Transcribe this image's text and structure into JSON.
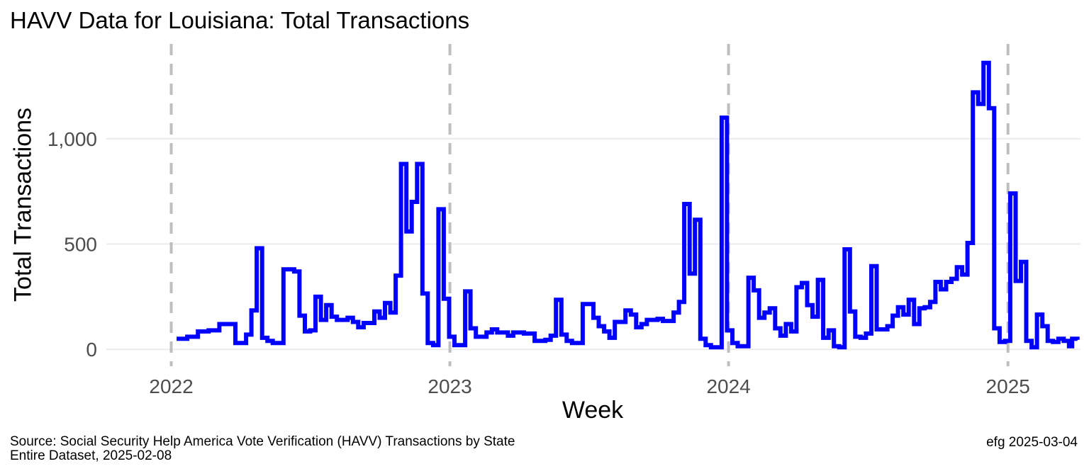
{
  "title": "HAVV Data for Louisiana:  Total Transactions",
  "caption": {
    "line1": "Source:  Social Security Help America Vote Verification (HAVV) Transactions by State",
    "line2": "Entire Dataset, 2025-02-08",
    "right": "efg 2025-03-04"
  },
  "colors": {
    "line": "#0000ff",
    "grid": "#ebebeb",
    "year_line": "#bebebe",
    "tick_text": "#4d4d4d"
  },
  "chart_data": {
    "type": "line",
    "step": true,
    "title": "HAVV Data for Louisiana:  Total Transactions",
    "xlabel": "Week",
    "ylabel": "Total Transactions",
    "x_ticks": [
      {
        "value": "2022-01-01",
        "label": "2022"
      },
      {
        "value": "2023-01-01",
        "label": "2023"
      },
      {
        "value": "2024-01-01",
        "label": "2024"
      },
      {
        "value": "2025-01-01",
        "label": "2025"
      }
    ],
    "y_ticks": [
      {
        "value": 0,
        "label": "0"
      },
      {
        "value": 500,
        "label": "500"
      },
      {
        "value": 1000,
        "label": "1,000"
      }
    ],
    "xlim": [
      "2021-10-08",
      "2025-04-06"
    ],
    "ylim": [
      -80,
      1450
    ],
    "year_lines": [
      "2022-01-01",
      "2023-01-01",
      "2024-01-01",
      "2025-01-01"
    ],
    "grid": true,
    "series": [
      {
        "values": [
          [
            "2022-01-08",
            50
          ],
          [
            "2022-01-22",
            60
          ],
          [
            "2022-02-05",
            85
          ],
          [
            "2022-02-19",
            90
          ],
          [
            "2022-03-05",
            120
          ],
          [
            "2022-03-26",
            30
          ],
          [
            "2022-04-09",
            70
          ],
          [
            "2022-04-16",
            185
          ],
          [
            "2022-04-23",
            480
          ],
          [
            "2022-04-30",
            55
          ],
          [
            "2022-05-07",
            40
          ],
          [
            "2022-05-14",
            30
          ],
          [
            "2022-05-28",
            380
          ],
          [
            "2022-06-11",
            370
          ],
          [
            "2022-06-18",
            160
          ],
          [
            "2022-06-25",
            85
          ],
          [
            "2022-07-02",
            90
          ],
          [
            "2022-07-09",
            250
          ],
          [
            "2022-07-16",
            140
          ],
          [
            "2022-07-23",
            210
          ],
          [
            "2022-07-30",
            155
          ],
          [
            "2022-08-06",
            140
          ],
          [
            "2022-08-20",
            150
          ],
          [
            "2022-08-27",
            130
          ],
          [
            "2022-09-03",
            105
          ],
          [
            "2022-09-10",
            125
          ],
          [
            "2022-09-24",
            180
          ],
          [
            "2022-10-01",
            150
          ],
          [
            "2022-10-08",
            220
          ],
          [
            "2022-10-15",
            175
          ],
          [
            "2022-10-22",
            350
          ],
          [
            "2022-10-29",
            880
          ],
          [
            "2022-11-05",
            560
          ],
          [
            "2022-11-12",
            700
          ],
          [
            "2022-11-19",
            880
          ],
          [
            "2022-11-26",
            265
          ],
          [
            "2022-12-03",
            30
          ],
          [
            "2022-12-10",
            20
          ],
          [
            "2022-12-17",
            665
          ],
          [
            "2022-12-24",
            240
          ],
          [
            "2022-12-31",
            60
          ],
          [
            "2023-01-07",
            20
          ],
          [
            "2023-01-21",
            275
          ],
          [
            "2023-01-28",
            100
          ],
          [
            "2023-02-04",
            60
          ],
          [
            "2023-02-18",
            80
          ],
          [
            "2023-02-25",
            95
          ],
          [
            "2023-03-04",
            80
          ],
          [
            "2023-03-18",
            65
          ],
          [
            "2023-03-25",
            80
          ],
          [
            "2023-04-08",
            75
          ],
          [
            "2023-04-22",
            40
          ],
          [
            "2023-05-06",
            45
          ],
          [
            "2023-05-13",
            65
          ],
          [
            "2023-05-20",
            235
          ],
          [
            "2023-05-27",
            70
          ],
          [
            "2023-06-03",
            40
          ],
          [
            "2023-06-10",
            30
          ],
          [
            "2023-06-24",
            215
          ],
          [
            "2023-07-08",
            150
          ],
          [
            "2023-07-15",
            110
          ],
          [
            "2023-07-22",
            85
          ],
          [
            "2023-07-29",
            55
          ],
          [
            "2023-08-05",
            130
          ],
          [
            "2023-08-19",
            185
          ],
          [
            "2023-08-26",
            165
          ],
          [
            "2023-09-02",
            105
          ],
          [
            "2023-09-09",
            120
          ],
          [
            "2023-09-16",
            140
          ],
          [
            "2023-09-30",
            145
          ],
          [
            "2023-10-07",
            135
          ],
          [
            "2023-10-21",
            175
          ],
          [
            "2023-10-28",
            225
          ],
          [
            "2023-11-04",
            690
          ],
          [
            "2023-11-11",
            360
          ],
          [
            "2023-11-18",
            615
          ],
          [
            "2023-11-25",
            50
          ],
          [
            "2023-12-02",
            20
          ],
          [
            "2023-12-09",
            10
          ],
          [
            "2023-12-16",
            10
          ],
          [
            "2023-12-23",
            1100
          ],
          [
            "2023-12-30",
            90
          ],
          [
            "2024-01-06",
            30
          ],
          [
            "2024-01-13",
            15
          ],
          [
            "2024-01-27",
            340
          ],
          [
            "2024-02-03",
            280
          ],
          [
            "2024-02-10",
            150
          ],
          [
            "2024-02-17",
            175
          ],
          [
            "2024-02-24",
            195
          ],
          [
            "2024-03-02",
            100
          ],
          [
            "2024-03-09",
            65
          ],
          [
            "2024-03-16",
            120
          ],
          [
            "2024-03-23",
            85
          ],
          [
            "2024-03-30",
            295
          ],
          [
            "2024-04-06",
            315
          ],
          [
            "2024-04-13",
            210
          ],
          [
            "2024-04-20",
            155
          ],
          [
            "2024-04-27",
            330
          ],
          [
            "2024-05-04",
            55
          ],
          [
            "2024-05-11",
            90
          ],
          [
            "2024-05-18",
            15
          ],
          [
            "2024-05-25",
            10
          ],
          [
            "2024-06-01",
            475
          ],
          [
            "2024-06-08",
            180
          ],
          [
            "2024-06-15",
            60
          ],
          [
            "2024-06-22",
            55
          ],
          [
            "2024-06-29",
            75
          ],
          [
            "2024-07-06",
            395
          ],
          [
            "2024-07-13",
            95
          ],
          [
            "2024-07-27",
            110
          ],
          [
            "2024-08-03",
            160
          ],
          [
            "2024-08-10",
            200
          ],
          [
            "2024-08-17",
            165
          ],
          [
            "2024-08-24",
            235
          ],
          [
            "2024-08-31",
            120
          ],
          [
            "2024-09-07",
            195
          ],
          [
            "2024-09-14",
            200
          ],
          [
            "2024-09-21",
            225
          ],
          [
            "2024-09-28",
            320
          ],
          [
            "2024-10-05",
            285
          ],
          [
            "2024-10-12",
            320
          ],
          [
            "2024-10-19",
            335
          ],
          [
            "2024-10-26",
            390
          ],
          [
            "2024-11-02",
            355
          ],
          [
            "2024-11-09",
            505
          ],
          [
            "2024-11-16",
            1220
          ],
          [
            "2024-11-23",
            1165
          ],
          [
            "2024-11-30",
            1360
          ],
          [
            "2024-12-07",
            1145
          ],
          [
            "2024-12-14",
            100
          ],
          [
            "2024-12-21",
            35
          ],
          [
            "2024-12-28",
            40
          ],
          [
            "2025-01-04",
            740
          ],
          [
            "2025-01-11",
            325
          ],
          [
            "2025-01-18",
            415
          ],
          [
            "2025-01-25",
            40
          ],
          [
            "2025-02-01",
            10
          ],
          [
            "2025-02-08",
            165
          ],
          [
            "2025-02-15",
            110
          ],
          [
            "2025-02-22",
            40
          ],
          [
            "2025-03-01",
            35
          ],
          [
            "2025-03-08",
            50
          ],
          [
            "2025-03-15",
            40
          ],
          [
            "2025-03-22",
            15
          ],
          [
            "2025-03-26",
            50
          ],
          [
            "2025-04-02",
            45
          ]
        ]
      }
    ]
  }
}
